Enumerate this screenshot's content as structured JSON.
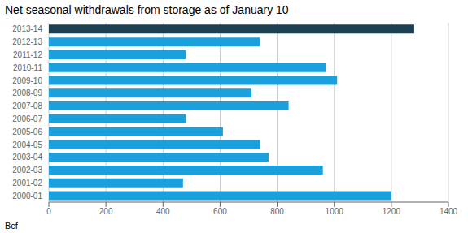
{
  "chart_data": {
    "type": "bar",
    "orientation": "horizontal",
    "title": "Net seasonal withdrawals from storage as of January 10",
    "categories": [
      "2013-14",
      "2012-13",
      "2011-12",
      "2010-11",
      "2009-10",
      "2008-09",
      "2007-08",
      "2006-07",
      "2005-06",
      "2004-05",
      "2003-04",
      "2002-03",
      "2001-02",
      "2000-01"
    ],
    "values": [
      1280,
      740,
      480,
      970,
      1010,
      710,
      840,
      480,
      610,
      740,
      770,
      960,
      470,
      1200
    ],
    "colors": [
      "#1c3f52",
      "#1aa0dc",
      "#1aa0dc",
      "#1aa0dc",
      "#1aa0dc",
      "#1aa0dc",
      "#1aa0dc",
      "#1aa0dc",
      "#1aa0dc",
      "#1aa0dc",
      "#1aa0dc",
      "#1aa0dc",
      "#1aa0dc",
      "#1aa0dc"
    ],
    "xlabel": "Bcf",
    "xlim": [
      0,
      1400
    ],
    "xticks": [
      0,
      200,
      400,
      600,
      800,
      1000,
      1200,
      1400
    ],
    "grid": true
  }
}
